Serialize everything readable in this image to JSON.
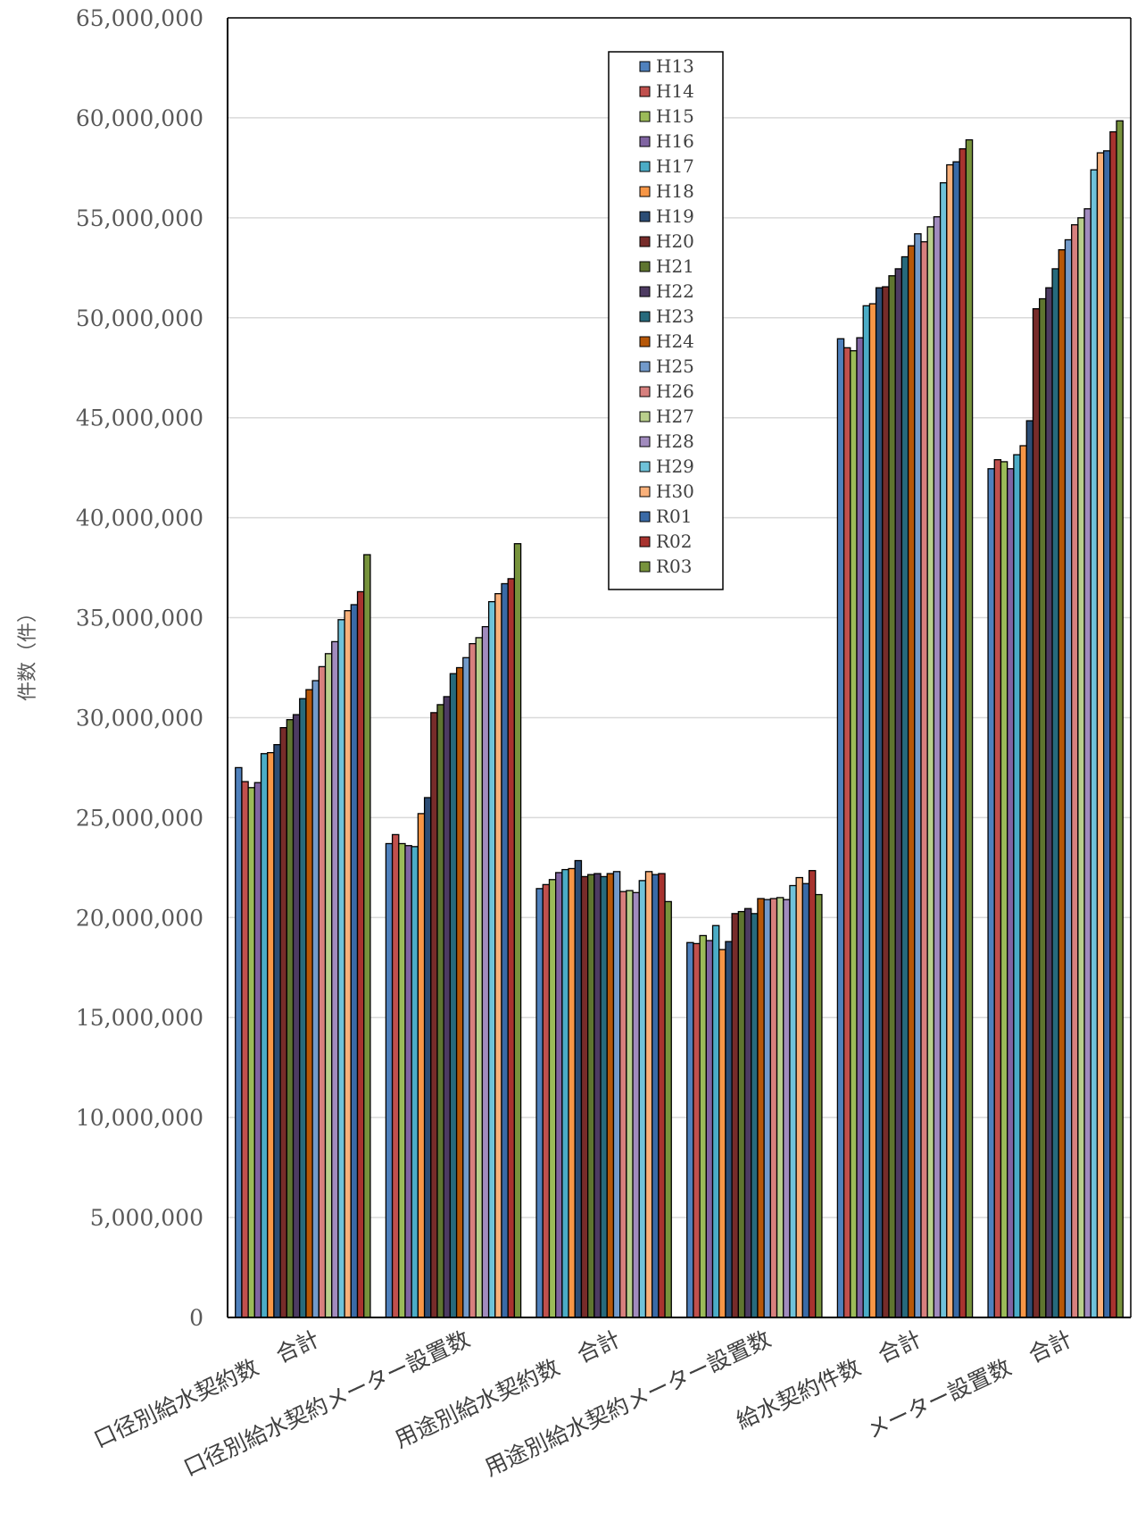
{
  "chart_data": {
    "type": "bar",
    "title": "",
    "xlabel": "",
    "ylabel": "件数（件）",
    "ylim": [
      0,
      65000000
    ],
    "y_ticks": [
      0,
      5000000,
      10000000,
      15000000,
      20000000,
      25000000,
      30000000,
      35000000,
      40000000,
      45000000,
      50000000,
      55000000,
      60000000,
      65000000
    ],
    "y_tick_labels": [
      "0",
      "5,000,000",
      "10,000,000",
      "15,000,000",
      "20,000,000",
      "25,000,000",
      "30,000,000",
      "35,000,000",
      "40,000,000",
      "45,000,000",
      "50,000,000",
      "55,000,000",
      "60,000,000",
      "65,000,000"
    ],
    "grid": true,
    "legend_position": "top-center",
    "categories": [
      "口径別給水契約数　合計",
      "口径別給水契約メーター設置数",
      "用途別給水契約数　合計",
      "用途別給水契約メーター設置数",
      "給水契約件数　合計",
      "メーター設置数　合計"
    ],
    "series": [
      {
        "name": "H13",
        "color": "#4f81bd",
        "values": [
          27500000,
          23700000,
          21450000,
          18750000,
          48950000,
          42450000
        ]
      },
      {
        "name": "H14",
        "color": "#c0504d",
        "values": [
          26800000,
          24150000,
          21650000,
          18700000,
          48500000,
          42900000
        ]
      },
      {
        "name": "H15",
        "color": "#9bbb59",
        "values": [
          26500000,
          23700000,
          21900000,
          19100000,
          48350000,
          42800000
        ]
      },
      {
        "name": "H16",
        "color": "#8064a2",
        "values": [
          26750000,
          23600000,
          22250000,
          18850000,
          49000000,
          42450000
        ]
      },
      {
        "name": "H17",
        "color": "#4bacc6",
        "values": [
          28200000,
          23550000,
          22400000,
          19600000,
          50600000,
          43150000
        ]
      },
      {
        "name": "H18",
        "color": "#f79646",
        "values": [
          28250000,
          25200000,
          22450000,
          18400000,
          50700000,
          43600000
        ]
      },
      {
        "name": "H19",
        "color": "#2c4d75",
        "values": [
          28650000,
          26000000,
          22850000,
          18800000,
          51500000,
          44850000
        ]
      },
      {
        "name": "H20",
        "color": "#772c2a",
        "values": [
          29500000,
          30250000,
          22050000,
          20200000,
          51550000,
          50450000
        ]
      },
      {
        "name": "H21",
        "color": "#5f7530",
        "values": [
          29900000,
          30650000,
          22150000,
          20300000,
          52100000,
          50950000
        ]
      },
      {
        "name": "H22",
        "color": "#4d3b62",
        "values": [
          30150000,
          31050000,
          22200000,
          20450000,
          52450000,
          51500000
        ]
      },
      {
        "name": "H23",
        "color": "#276a7c",
        "values": [
          30950000,
          32200000,
          22050000,
          20200000,
          53050000,
          52450000
        ]
      },
      {
        "name": "H24",
        "color": "#b65708",
        "values": [
          31400000,
          32500000,
          22200000,
          20950000,
          53600000,
          53400000
        ]
      },
      {
        "name": "H25",
        "color": "#729aca",
        "values": [
          31850000,
          33000000,
          22300000,
          20900000,
          54200000,
          53900000
        ]
      },
      {
        "name": "H26",
        "color": "#d7807e",
        "values": [
          32550000,
          33700000,
          21300000,
          20950000,
          53800000,
          54650000
        ]
      },
      {
        "name": "H27",
        "color": "#b9cf8c",
        "values": [
          33200000,
          34000000,
          21350000,
          21000000,
          54550000,
          55000000
        ]
      },
      {
        "name": "H28",
        "color": "#a18bbe",
        "values": [
          33800000,
          34550000,
          21250000,
          20900000,
          55050000,
          55450000
        ]
      },
      {
        "name": "H29",
        "color": "#6fc2d9",
        "values": [
          34900000,
          35800000,
          21850000,
          21600000,
          56750000,
          57400000
        ]
      },
      {
        "name": "H30",
        "color": "#f9b07a",
        "values": [
          35350000,
          36200000,
          22300000,
          22000000,
          57650000,
          58250000
        ]
      },
      {
        "name": "R01",
        "color": "#3a6aa6",
        "values": [
          35650000,
          36700000,
          22150000,
          21700000,
          57800000,
          58350000
        ]
      },
      {
        "name": "R02",
        "color": "#a8332f",
        "values": [
          36300000,
          36950000,
          22200000,
          22350000,
          58450000,
          59300000
        ]
      },
      {
        "name": "R03",
        "color": "#77933c",
        "values": [
          38150000,
          38700000,
          20800000,
          21150000,
          58900000,
          59850000
        ]
      }
    ]
  }
}
